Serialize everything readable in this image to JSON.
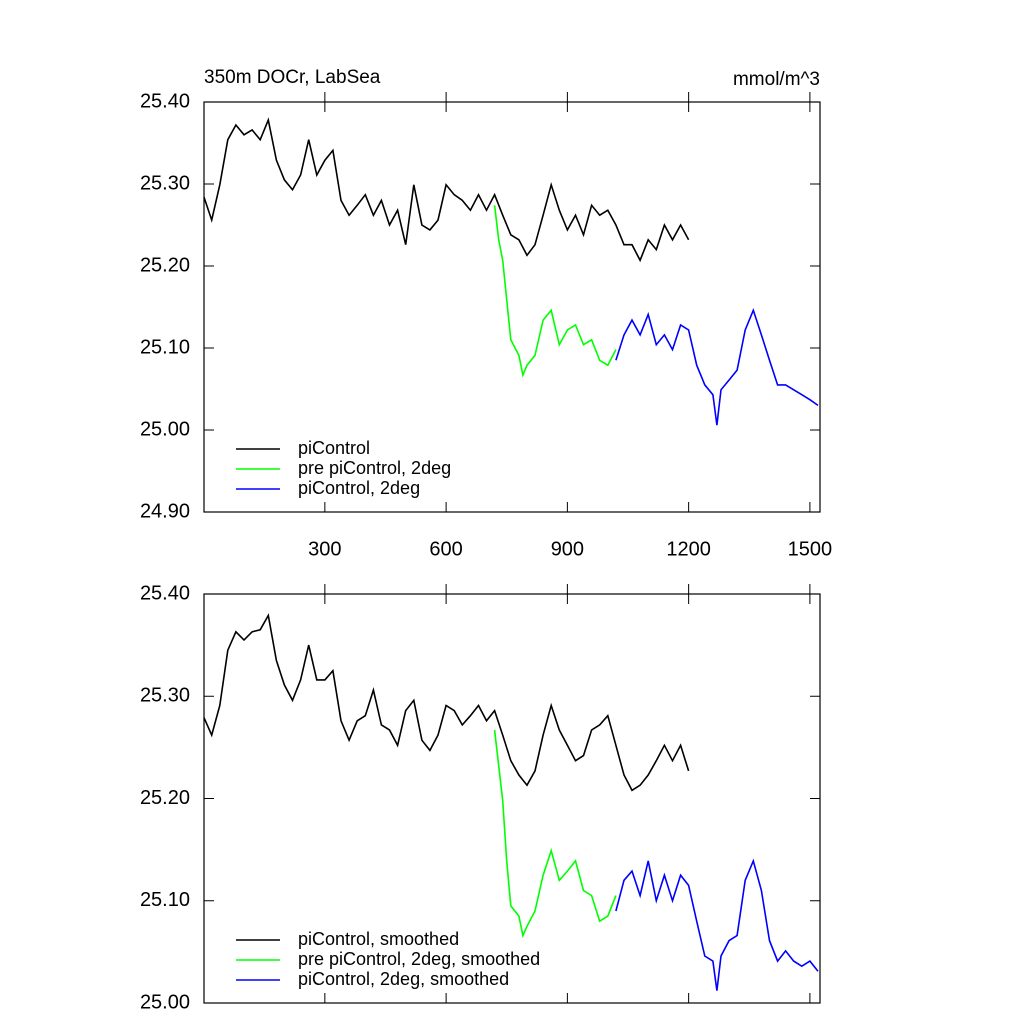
{
  "chart_data": [
    {
      "type": "line",
      "title_left": "350m DOCr, LabSea",
      "title_right": "mmol/m^3",
      "xlim": [
        1,
        1525
      ],
      "xticks": [
        300,
        600,
        900,
        1200,
        1500
      ],
      "ylim": [
        24.9,
        25.4
      ],
      "yticks": [
        {
          "value": 24.9,
          "label": "24.90"
        },
        {
          "value": 25.0,
          "label": "25.00"
        },
        {
          "value": 25.1,
          "label": "25.10"
        },
        {
          "value": 25.2,
          "label": "25.20"
        },
        {
          "value": 25.3,
          "label": "25.30"
        },
        {
          "value": 25.4,
          "label": "25.40"
        }
      ],
      "legend": "lower left",
      "series": [
        {
          "name": "piControl",
          "color": "#000000",
          "x": [
            1,
            20,
            40,
            60,
            80,
            100,
            120,
            140,
            160,
            180,
            200,
            220,
            240,
            260,
            280,
            300,
            320,
            340,
            360,
            380,
            400,
            420,
            440,
            460,
            480,
            500,
            520,
            540,
            560,
            580,
            600,
            620,
            640,
            660,
            680,
            700,
            720,
            740,
            760,
            780,
            800,
            820,
            840,
            860,
            880,
            900,
            920,
            940,
            960,
            980,
            1000,
            1020,
            1040,
            1060,
            1080,
            1100,
            1120,
            1140,
            1160,
            1180,
            1200
          ],
          "values": [
            25.284,
            25.256,
            25.299,
            25.354,
            25.372,
            25.36,
            25.366,
            25.354,
            25.378,
            25.329,
            25.305,
            25.293,
            25.311,
            25.354,
            25.311,
            25.329,
            25.341,
            25.28,
            25.262,
            25.274,
            25.287,
            25.262,
            25.28,
            25.25,
            25.268,
            25.226,
            25.299,
            25.25,
            25.244,
            25.256,
            25.299,
            25.287,
            25.28,
            25.268,
            25.287,
            25.268,
            25.287,
            25.262,
            25.238,
            25.232,
            25.213,
            25.226,
            25.262,
            25.299,
            25.268,
            25.244,
            25.262,
            25.238,
            25.274,
            25.262,
            25.268,
            25.25,
            25.226,
            25.226,
            25.207,
            25.232,
            25.22,
            25.25,
            25.232,
            25.25,
            25.232
          ]
        },
        {
          "name": "pre piControl, 2deg",
          "color": "#00ff00",
          "x": [
            720,
            730,
            740,
            750,
            760,
            780,
            790,
            800,
            820,
            840,
            860,
            880,
            900,
            920,
            940,
            960,
            980,
            1000,
            1020
          ],
          "values": [
            25.274,
            25.232,
            25.207,
            25.159,
            25.11,
            25.091,
            25.067,
            25.079,
            25.091,
            25.134,
            25.146,
            25.104,
            25.122,
            25.128,
            25.104,
            25.11,
            25.085,
            25.079,
            25.098
          ]
        },
        {
          "name": "piControl, 2deg",
          "color": "#0000ff",
          "x": [
            1020,
            1040,
            1060,
            1080,
            1100,
            1120,
            1140,
            1160,
            1180,
            1200,
            1220,
            1240,
            1260,
            1270,
            1280,
            1300,
            1320,
            1340,
            1360,
            1380,
            1400,
            1420,
            1440,
            1460,
            1480,
            1500,
            1520
          ],
          "values": [
            25.085,
            25.116,
            25.134,
            25.116,
            25.141,
            25.104,
            25.116,
            25.098,
            25.128,
            25.122,
            25.079,
            25.055,
            25.043,
            25.006,
            25.049,
            25.061,
            25.073,
            25.122,
            25.146,
            25.116,
            25.085,
            25.055,
            25.055,
            25.049,
            25.043,
            25.037,
            25.03
          ]
        }
      ]
    },
    {
      "type": "line",
      "xlim": [
        1,
        1525
      ],
      "xticks": [
        300,
        600,
        900,
        1200,
        1500
      ],
      "ylim": [
        25.0,
        25.4
      ],
      "yticks": [
        {
          "value": 25.0,
          "label": "25.00"
        },
        {
          "value": 25.1,
          "label": "25.10"
        },
        {
          "value": 25.2,
          "label": "25.20"
        },
        {
          "value": 25.3,
          "label": "25.30"
        },
        {
          "value": 25.4,
          "label": "25.40"
        }
      ],
      "legend": "lower left",
      "series": [
        {
          "name": "piControl, smoothed",
          "color": "#000000",
          "x": [
            1,
            20,
            40,
            60,
            80,
            100,
            120,
            140,
            160,
            180,
            200,
            220,
            240,
            260,
            280,
            300,
            320,
            340,
            360,
            380,
            400,
            420,
            440,
            460,
            480,
            500,
            520,
            540,
            560,
            580,
            600,
            620,
            640,
            660,
            680,
            700,
            720,
            740,
            760,
            780,
            800,
            820,
            840,
            860,
            880,
            900,
            920,
            940,
            960,
            980,
            1000,
            1020,
            1040,
            1060,
            1080,
            1100,
            1120,
            1140,
            1160,
            1180,
            1200
          ],
          "values": [
            25.279,
            25.262,
            25.291,
            25.345,
            25.363,
            25.355,
            25.363,
            25.365,
            25.379,
            25.335,
            25.311,
            25.296,
            25.316,
            25.35,
            25.316,
            25.316,
            25.325,
            25.276,
            25.257,
            25.276,
            25.281,
            25.306,
            25.272,
            25.267,
            25.252,
            25.286,
            25.296,
            25.257,
            25.247,
            25.262,
            25.291,
            25.286,
            25.272,
            25.281,
            25.291,
            25.276,
            25.286,
            25.262,
            25.237,
            25.223,
            25.213,
            25.227,
            25.262,
            25.291,
            25.267,
            25.252,
            25.237,
            25.242,
            25.267,
            25.272,
            25.281,
            25.252,
            25.223,
            25.208,
            25.213,
            25.223,
            25.237,
            25.252,
            25.237,
            25.252,
            25.227
          ]
        },
        {
          "name": "pre piControl, 2deg, smoothed",
          "color": "#00ff00",
          "x": [
            720,
            740,
            750,
            760,
            780,
            790,
            800,
            820,
            840,
            860,
            880,
            900,
            920,
            940,
            960,
            980,
            1000,
            1020
          ],
          "values": [
            25.267,
            25.198,
            25.139,
            25.095,
            25.085,
            25.066,
            25.075,
            25.09,
            25.125,
            25.149,
            25.12,
            25.129,
            25.139,
            25.11,
            25.105,
            25.08,
            25.085,
            25.105
          ]
        },
        {
          "name": "piControl, 2deg, smoothed",
          "color": "#0000ff",
          "x": [
            1020,
            1040,
            1060,
            1080,
            1100,
            1120,
            1140,
            1160,
            1180,
            1200,
            1220,
            1240,
            1260,
            1270,
            1280,
            1300,
            1320,
            1340,
            1360,
            1380,
            1400,
            1420,
            1440,
            1460,
            1480,
            1500,
            1520
          ],
          "values": [
            25.09,
            25.12,
            25.129,
            25.105,
            25.139,
            25.1,
            25.125,
            25.1,
            25.125,
            25.115,
            25.08,
            25.046,
            25.041,
            25.012,
            25.046,
            25.061,
            25.066,
            25.12,
            25.139,
            25.11,
            25.061,
            25.041,
            25.051,
            25.041,
            25.036,
            25.041,
            25.031
          ]
        }
      ]
    }
  ]
}
